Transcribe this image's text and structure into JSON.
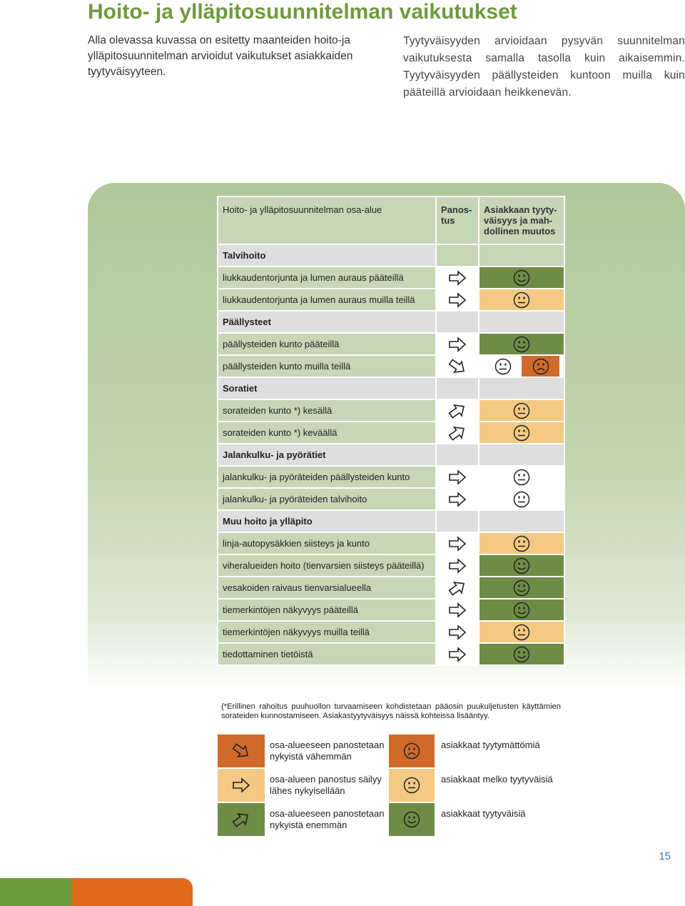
{
  "title": "Hoito- ja ylläpitosuunnitelman vaikutukset",
  "intro_left": "Alla olevassa kuvassa on esitetty maanteiden hoito-ja ylläpitosuunnitelman arvioidut vaikutukset asiakkaiden tyytyväisyyteen.",
  "intro_right": "Tyytyväisyyden arvioidaan pysyvän suunnitelman vaikutuksesta samalla tasolla kuin aikaisemmin. Tyytyväisyyden päällysteiden kuntoon muilla kuin pääteillä arvioidaan heikkenevän.",
  "table": {
    "headers": {
      "area": "Hoito- ja ylläpitosuunnitelman osa-alue",
      "effort": "Panos-tus",
      "satisfaction": "Asiakkaan tyyty-väisyys ja mah-dollinen muutos"
    },
    "sections": [
      {
        "title": "Talvihoito",
        "rows": [
          {
            "label": "liukkaudentorjunta ja lumen auraus pääteillä",
            "effort": "same",
            "satisfaction": "satisfied"
          },
          {
            "label": "liukkaudentorjunta ja lumen auraus muilla teillä",
            "effort": "same",
            "satisfaction": "fairly"
          }
        ]
      },
      {
        "title": "Päällysteet",
        "rows": [
          {
            "label": "päällysteiden kunto pääteillä",
            "effort": "same",
            "satisfaction": "satisfied"
          },
          {
            "label": "päällysteiden kunto muilla teillä",
            "effort": "less",
            "satisfaction": "fairly-to-dissatisfied"
          }
        ]
      },
      {
        "title": "Soratiet",
        "rows": [
          {
            "label": "sorateiden kunto *) kesällä",
            "effort": "more",
            "satisfaction": "fairly"
          },
          {
            "label": "sorateiden kunto *) keväällä",
            "effort": "more",
            "satisfaction": "fairly"
          }
        ]
      },
      {
        "title": "Jalankulku- ja pyörätiet",
        "rows": [
          {
            "label": "jalankulku- ja pyöräteiden päällysteiden kunto",
            "effort": "same",
            "satisfaction": "fairly-white"
          },
          {
            "label": "jalankulku- ja pyöräteiden talvihoito",
            "effort": "same",
            "satisfaction": "fairly-white"
          }
        ]
      },
      {
        "title": "Muu hoito ja ylläpito",
        "rows": [
          {
            "label": "linja-autopysäkkien siisteys ja kunto",
            "effort": "same",
            "satisfaction": "fairly"
          },
          {
            "label": "viheralueiden hoito (tienvarsien siisteys pääteillä)",
            "effort": "same",
            "satisfaction": "satisfied"
          },
          {
            "label": "vesakoiden raivaus tienvarsialueella",
            "effort": "more",
            "satisfaction": "satisfied"
          },
          {
            "label": "tiemerkintöjen näkyvyys pääteillä",
            "effort": "same",
            "satisfaction": "satisfied"
          },
          {
            "label": "tiemerkintöjen näkyvyys muilla teillä",
            "effort": "same",
            "satisfaction": "fairly"
          },
          {
            "label": "tiedottaminen tietöistä",
            "effort": "same",
            "satisfaction": "satisfied"
          }
        ]
      }
    ]
  },
  "footnote": "(*Erillinen rahoitus puuhuollon turvaamiseen kohdistetaan pääosin puukuljetusten käyttämien sorateiden kunnostamiseen. Asiakastyytyväisyys näissä kohteissa lisääntyy.",
  "legend": {
    "effort": [
      {
        "key": "less",
        "label": "osa-alueeseen panostetaan nykyistä vähemmän"
      },
      {
        "key": "same",
        "label": "osa-alueen panostus säilyy lähes nykyisellään"
      },
      {
        "key": "more",
        "label": "osa-alueeseen panostetaan nykyistä enemmän"
      }
    ],
    "satisfaction": [
      {
        "key": "dissatisfied",
        "label": "asiakkaat tyytymättömiä"
      },
      {
        "key": "fairly",
        "label": "asiakkaat melko tyytyväisiä"
      },
      {
        "key": "satisfied",
        "label": "asiakkaat tyytyväisiä"
      }
    ]
  },
  "colors": {
    "title_green": "#6e9a3e",
    "effect_green": "#6e8c46",
    "effect_yellow": "#f4c983",
    "effect_orange": "#d06a2b",
    "row_label_bg": "#c6d6b6"
  },
  "page_number": "15"
}
